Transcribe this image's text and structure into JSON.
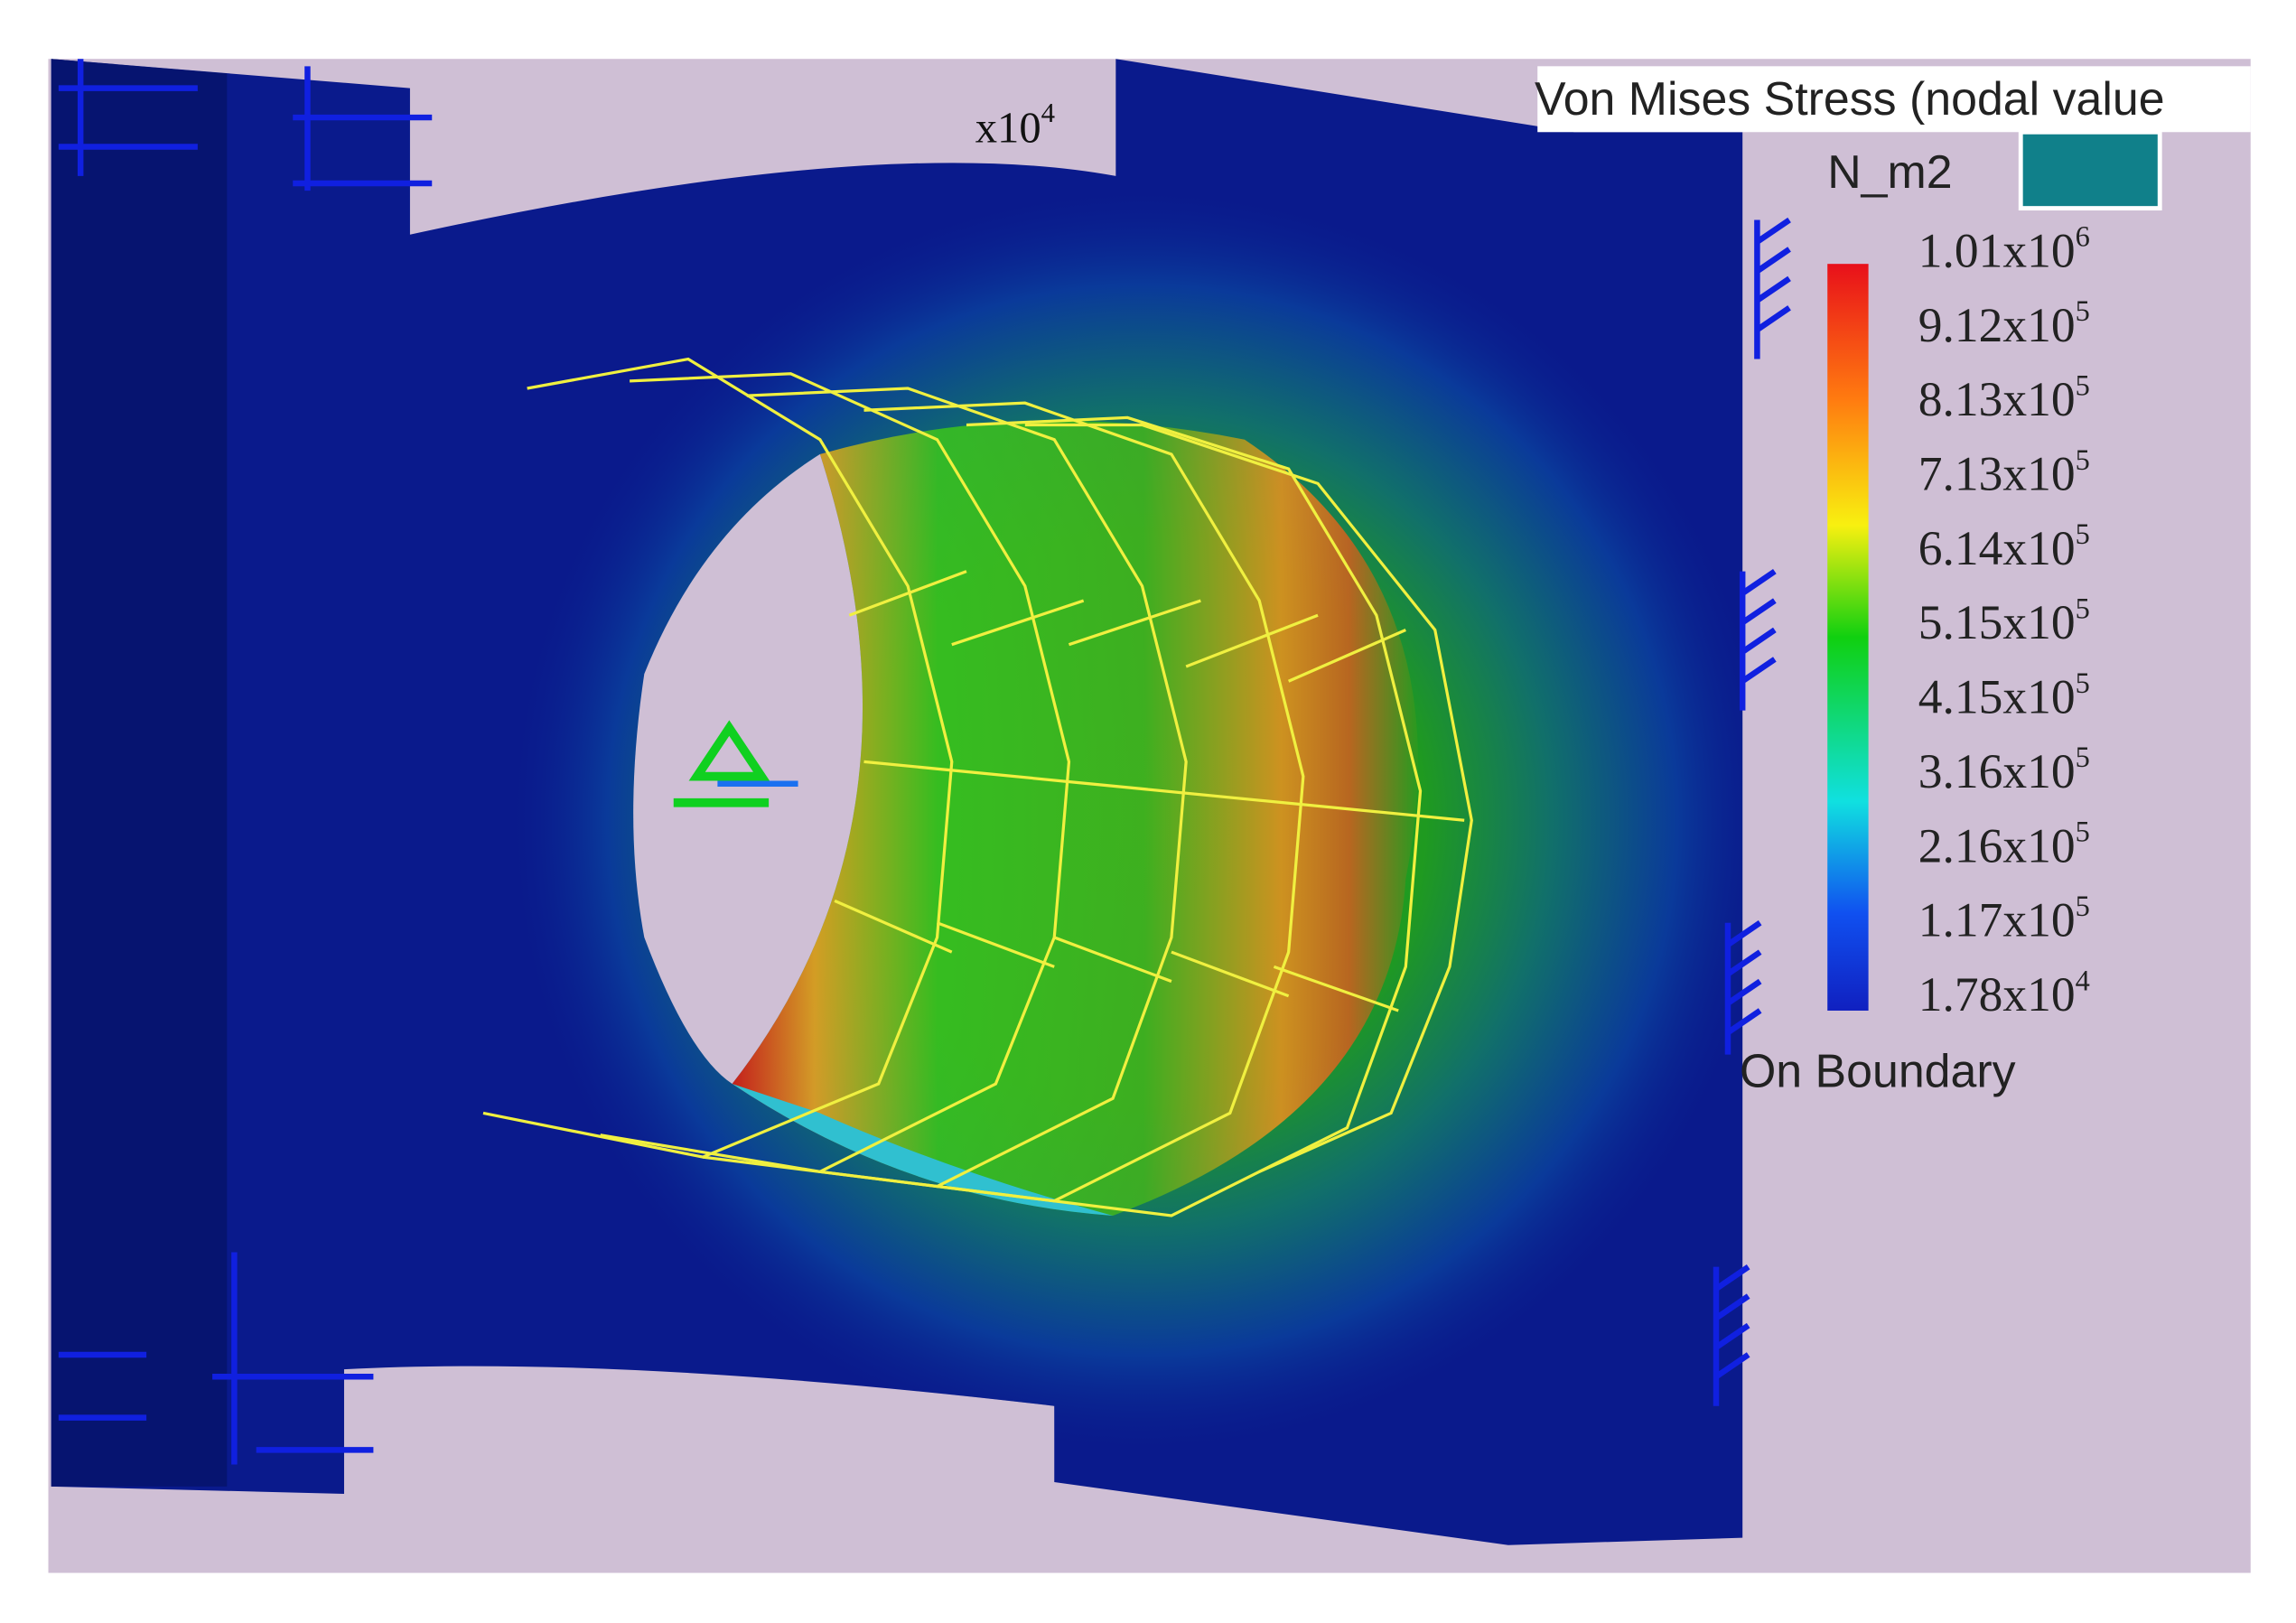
{
  "legend": {
    "title": "Von Mises Stress (nodal value",
    "unit": "N_m2",
    "labels": [
      {
        "base": "1.01x10",
        "exponent": "6"
      },
      {
        "base": "9.12x10",
        "exponent": "5"
      },
      {
        "base": "8.13x10",
        "exponent": "5"
      },
      {
        "base": "7.13x10",
        "exponent": "5"
      },
      {
        "base": "6.14x10",
        "exponent": "5"
      },
      {
        "base": "5.15x10",
        "exponent": "5"
      },
      {
        "base": "4.15x10",
        "exponent": "5"
      },
      {
        "base": "3.16x10",
        "exponent": "5"
      },
      {
        "base": "2.16x10",
        "exponent": "5"
      },
      {
        "base": "1.17x10",
        "exponent": "5"
      },
      {
        "base": "1.78x10",
        "exponent": "4"
      }
    ],
    "footer": "On Boundary"
  },
  "annotation": {
    "base": "x10",
    "exponent": "4"
  }
}
